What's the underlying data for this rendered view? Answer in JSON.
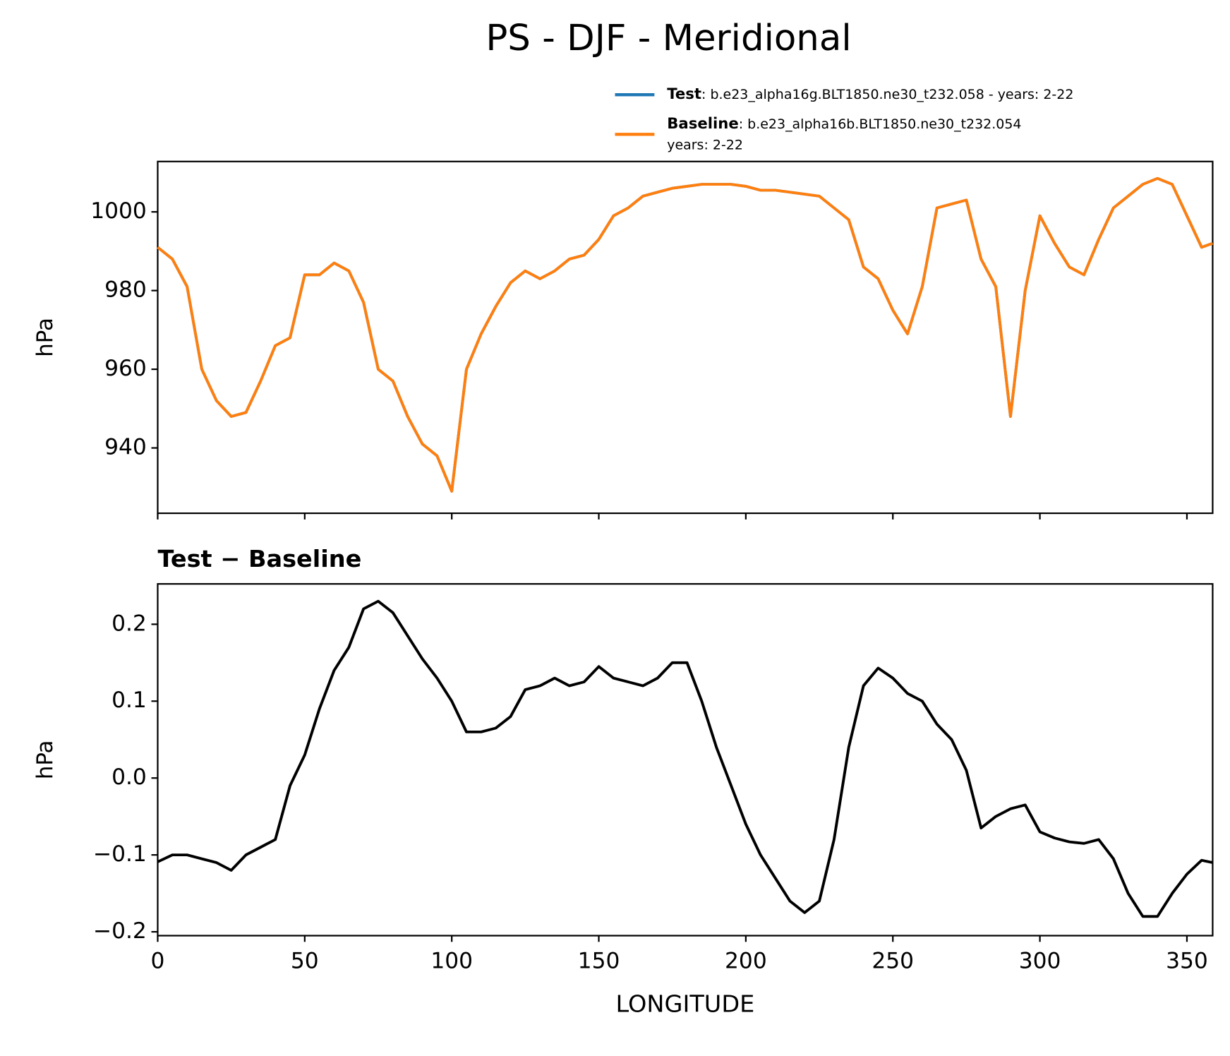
{
  "title": "PS - DJF - Meridional",
  "chart_data": [
    {
      "type": "line",
      "ylabel": "hPa",
      "show_xtick_labels": false,
      "x": [
        0,
        5,
        10,
        15,
        20,
        25,
        30,
        35,
        40,
        45,
        50,
        55,
        60,
        65,
        70,
        75,
        80,
        85,
        90,
        95,
        100,
        105,
        110,
        115,
        120,
        125,
        130,
        135,
        140,
        145,
        150,
        155,
        160,
        165,
        170,
        175,
        180,
        185,
        190,
        195,
        200,
        205,
        210,
        215,
        220,
        225,
        230,
        235,
        240,
        245,
        250,
        255,
        260,
        265,
        270,
        275,
        280,
        285,
        290,
        295,
        300,
        305,
        310,
        315,
        320,
        325,
        330,
        335,
        340,
        345,
        350,
        355,
        358.75
      ],
      "series": [
        {
          "name": "Test",
          "label": ": b.e23_alpha16g.BLT1850.ne30_t232.058 - years: 2-22",
          "color": "#1f77b4",
          "values": [
            991,
            988,
            981,
            960,
            952,
            948,
            949,
            957,
            966,
            968,
            984,
            984,
            987,
            985,
            977,
            960,
            957,
            948,
            941,
            938,
            929,
            960,
            969,
            976,
            982,
            985,
            983,
            985,
            988,
            989,
            993,
            999,
            1001,
            1004,
            1005,
            1006,
            1006.5,
            1007,
            1007,
            1007,
            1006.5,
            1005.5,
            1005.5,
            1005,
            1004.5,
            1004,
            1001,
            998,
            986,
            983,
            975,
            969,
            981,
            1001,
            1002,
            1003,
            988,
            981,
            948,
            980,
            999,
            992,
            986,
            984,
            993,
            1001,
            1004,
            1007,
            1008.5,
            1007,
            999,
            991,
            992
          ]
        },
        {
          "name": "Baseline",
          "label_lines": [
            ": b.e23_alpha16b.BLT1850.ne30_t232.054",
            "years: 2-22"
          ],
          "color": "#ff7f0e",
          "values": [
            991,
            988,
            981,
            960,
            952,
            948,
            949,
            957,
            966,
            968,
            984,
            984,
            987,
            985,
            977,
            960,
            957,
            948,
            941,
            938,
            929,
            960,
            969,
            976,
            982,
            985,
            983,
            985,
            988,
            989,
            993,
            999,
            1001,
            1004,
            1005,
            1006,
            1006.5,
            1007,
            1007,
            1007,
            1006.5,
            1005.5,
            1005.5,
            1005,
            1004.5,
            1004,
            1001,
            998,
            986,
            983,
            975,
            969,
            981,
            1001,
            1002,
            1003,
            988,
            981,
            948,
            980,
            999,
            992,
            986,
            984,
            993,
            1001,
            1004,
            1007,
            1008.5,
            1007,
            999,
            991,
            992
          ]
        }
      ],
      "xlim": [
        0,
        358.75
      ],
      "ylim": [
        923.4,
        1012.8
      ],
      "xticks": [
        0,
        50,
        100,
        150,
        200,
        250,
        300,
        350
      ],
      "yticks": [
        940,
        960,
        980,
        1000
      ]
    },
    {
      "type": "line",
      "title": "Test − Baseline",
      "ylabel": "hPa",
      "xlabel": "LONGITUDE",
      "show_xtick_labels": true,
      "x": [
        0,
        5,
        10,
        15,
        20,
        25,
        30,
        35,
        40,
        45,
        50,
        55,
        60,
        65,
        70,
        75,
        80,
        85,
        90,
        95,
        100,
        105,
        110,
        115,
        120,
        125,
        130,
        135,
        140,
        145,
        150,
        155,
        160,
        165,
        170,
        175,
        180,
        185,
        190,
        195,
        200,
        205,
        210,
        215,
        220,
        225,
        230,
        235,
        240,
        245,
        250,
        255,
        260,
        265,
        270,
        275,
        280,
        285,
        290,
        295,
        300,
        305,
        310,
        315,
        320,
        325,
        330,
        335,
        340,
        345,
        350,
        355,
        358.75
      ],
      "series": [
        {
          "color": "#000000",
          "values": [
            -0.109,
            -0.1,
            -0.1,
            -0.105,
            -0.11,
            -0.12,
            -0.1,
            -0.09,
            -0.08,
            -0.01,
            0.03,
            0.09,
            0.14,
            0.17,
            0.22,
            0.23,
            0.215,
            0.185,
            0.155,
            0.13,
            0.1,
            0.06,
            0.06,
            0.065,
            0.08,
            0.115,
            0.12,
            0.13,
            0.12,
            0.125,
            0.145,
            0.13,
            0.125,
            0.12,
            0.13,
            0.15,
            0.15,
            0.1,
            0.04,
            -0.01,
            -0.06,
            -0.1,
            -0.13,
            -0.16,
            -0.175,
            -0.16,
            -0.08,
            0.04,
            0.12,
            0.143,
            0.13,
            0.11,
            0.1,
            0.07,
            0.05,
            0.01,
            -0.065,
            -0.05,
            -0.04,
            -0.035,
            -0.07,
            -0.078,
            -0.083,
            -0.085,
            -0.08,
            -0.105,
            -0.15,
            -0.18,
            -0.18,
            -0.15,
            -0.125,
            -0.107,
            -0.11
          ]
        }
      ],
      "xlim": [
        0,
        358.75
      ],
      "ylim": [
        -0.205,
        0.2525
      ],
      "xticks": [
        0,
        50,
        100,
        150,
        200,
        250,
        300,
        350
      ],
      "yticks": [
        {
          "value": -0.2,
          "label": "−0.2"
        },
        {
          "value": -0.1,
          "label": "−0.1"
        },
        {
          "value": 0,
          "label": "0.0"
        },
        0.1,
        0.2
      ]
    }
  ]
}
